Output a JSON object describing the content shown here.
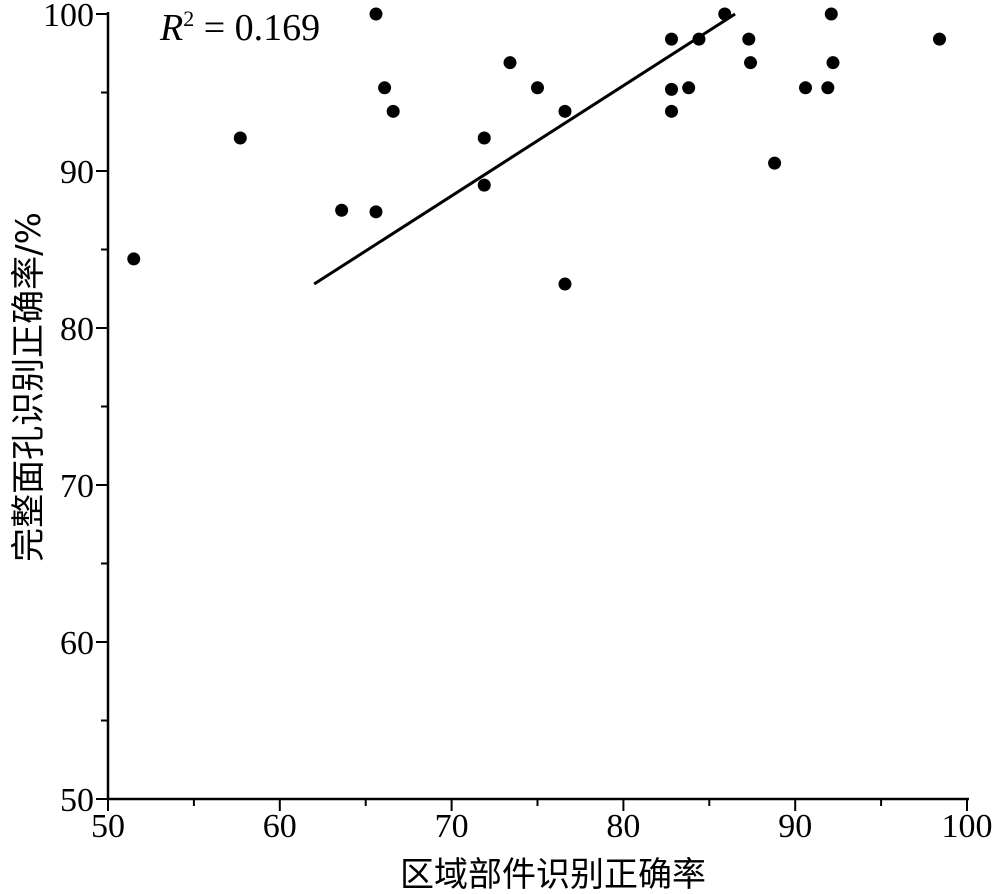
{
  "chart_data": {
    "type": "scatter",
    "xlabel": "区域部件识别正确率",
    "ylabel": "完整面孔识别正确率/%",
    "xlim": [
      50,
      100
    ],
    "ylim": [
      50,
      100
    ],
    "x_ticks": [
      50,
      60,
      70,
      80,
      90,
      100
    ],
    "y_ticks": [
      50,
      60,
      70,
      80,
      90,
      100
    ],
    "x_tick_labels": [
      "50",
      "60",
      "70",
      "80",
      "90",
      "100"
    ],
    "y_tick_labels": [
      "50",
      "60",
      "70",
      "80",
      "90",
      "100"
    ],
    "grid": false,
    "annotation": {
      "r_symbol": "R",
      "superscript": "2",
      "value_text": " = 0.169"
    },
    "points": [
      {
        "x": 51.5,
        "y": 84.4
      },
      {
        "x": 57.7,
        "y": 92.1
      },
      {
        "x": 63.6,
        "y": 87.5
      },
      {
        "x": 65.6,
        "y": 100.0
      },
      {
        "x": 65.6,
        "y": 87.4
      },
      {
        "x": 66.1,
        "y": 95.3
      },
      {
        "x": 66.6,
        "y": 93.8
      },
      {
        "x": 71.9,
        "y": 92.1
      },
      {
        "x": 71.9,
        "y": 89.1
      },
      {
        "x": 73.4,
        "y": 96.9
      },
      {
        "x": 75.0,
        "y": 95.3
      },
      {
        "x": 76.6,
        "y": 93.8
      },
      {
        "x": 76.6,
        "y": 82.8
      },
      {
        "x": 82.8,
        "y": 98.4
      },
      {
        "x": 82.8,
        "y": 95.2
      },
      {
        "x": 82.8,
        "y": 93.8
      },
      {
        "x": 83.8,
        "y": 95.3
      },
      {
        "x": 84.4,
        "y": 98.4
      },
      {
        "x": 85.9,
        "y": 100.0
      },
      {
        "x": 87.3,
        "y": 98.4
      },
      {
        "x": 87.4,
        "y": 96.9
      },
      {
        "x": 88.8,
        "y": 90.5
      },
      {
        "x": 90.6,
        "y": 95.3
      },
      {
        "x": 91.9,
        "y": 95.3
      },
      {
        "x": 92.1,
        "y": 100.0
      },
      {
        "x": 92.2,
        "y": 96.9
      },
      {
        "x": 98.4,
        "y": 98.4
      }
    ],
    "trendline": {
      "x": [
        62.0,
        86.5
      ],
      "y": [
        82.8,
        100.0
      ]
    }
  }
}
